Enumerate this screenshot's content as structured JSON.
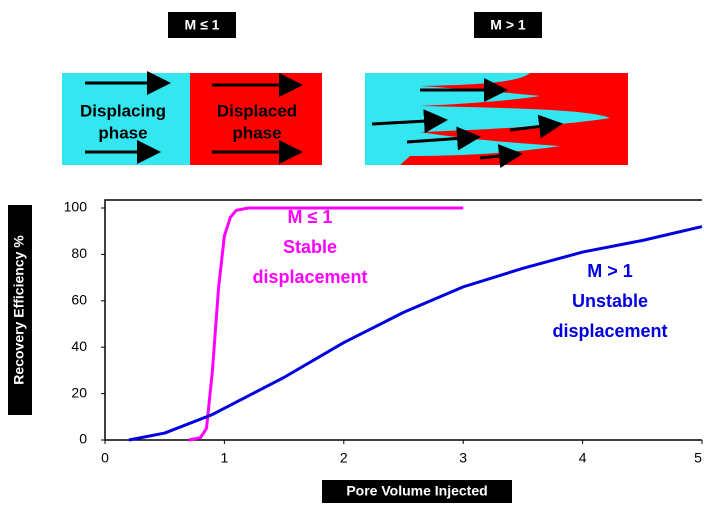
{
  "diagram": {
    "left_label": "M ≤ 1",
    "right_label": "M > 1",
    "displacing": [
      "Displacing",
      "phase"
    ],
    "displaced": [
      "Displaced",
      "phase"
    ]
  },
  "chart_data": {
    "type": "line",
    "xlabel": "Pore Volume Injected",
    "ylabel": "Recovery Efficiency %",
    "xlim": [
      0,
      5
    ],
    "ylim": [
      0,
      100
    ],
    "xticks": [
      0,
      1,
      2,
      3,
      4,
      5
    ],
    "yticks": [
      0,
      20,
      40,
      60,
      80,
      100
    ],
    "series": [
      {
        "color": "#ff00ff",
        "x": [
          0.7,
          0.8,
          0.85,
          0.9,
          0.95,
          1.0,
          1.05,
          1.1,
          1.2,
          3.0
        ],
        "values": [
          0,
          1,
          5,
          30,
          65,
          88,
          96,
          99,
          100,
          100
        ]
      },
      {
        "color": "#0000e0",
        "x": [
          0.2,
          0.5,
          0.9,
          1.5,
          2,
          2.5,
          3,
          3.5,
          4,
          4.5,
          5
        ],
        "values": [
          0,
          3,
          11,
          27,
          42,
          55,
          66,
          74,
          81,
          86,
          92
        ]
      }
    ],
    "annotations": [
      {
        "color": "#ff00ff",
        "text": [
          "M ≤ 1",
          "Stable",
          "displacement"
        ]
      },
      {
        "color": "#0000e0",
        "text": [
          "M > 1",
          "Unstable",
          "displacement"
        ]
      }
    ]
  }
}
